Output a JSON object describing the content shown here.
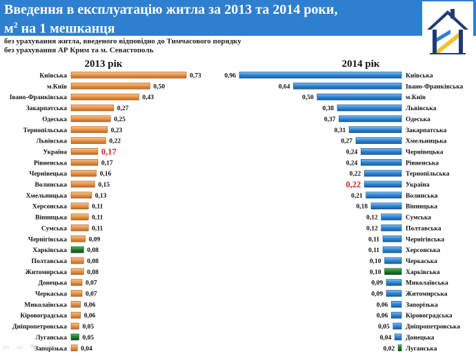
{
  "header": {
    "title_line1": "Введення в експлуатацію житла за 2013 та 2014 роки,",
    "title_line2_unit": "м",
    "title_line2_sup": "2",
    "title_line2_rest": " на 1 мешканця"
  },
  "notes": {
    "line1": "без урахування житла, введеного відповідно до Тимчасового порядку",
    "line2": "без урахування  АР Крим та м. Севастополь"
  },
  "nav": {
    "glyphs": "⇦ ⇨ ✎ ▭"
  },
  "colors": {
    "header_bg": "#2e7fcf",
    "bar_2013": "#e8944a",
    "bar_2014": "#2f86d6",
    "highlight_bar": "#1e7a2e",
    "ukraine_label": "#c0282d"
  },
  "chart_data": [
    {
      "type": "bar",
      "orientation": "horizontal",
      "title": "2013 рік",
      "categories": [
        "Київська",
        "м.Київ",
        "Івано-Франківська",
        "Закарпатська",
        "Одеська",
        "Тернопільська",
        "Львівська",
        "Україна",
        "Рівненська",
        "Чернівецька",
        "Волинська",
        "Хмельницька",
        "Херсонська",
        "Вінницька",
        "Сумська",
        "Чернігівська",
        "Харківська",
        "Полтавська",
        "Житомирська",
        "Донецька",
        "Черкаська",
        "Миколаївська",
        "Кіровоградська",
        "Дніпропетровська",
        "Луганська",
        "Запорізька"
      ],
      "values": [
        0.73,
        0.5,
        0.43,
        0.27,
        0.25,
        0.23,
        0.22,
        0.17,
        0.17,
        0.16,
        0.15,
        0.13,
        0.11,
        0.11,
        0.11,
        0.09,
        0.08,
        0.08,
        0.08,
        0.07,
        0.07,
        0.06,
        0.06,
        0.05,
        0.05,
        0.04
      ],
      "value_labels": [
        "0,73",
        "0,50",
        "0,43",
        "0,27",
        "0,25",
        "0,23",
        "0,22",
        "0,17",
        "0,17",
        "0,16",
        "0,15",
        "0,13",
        "0,11",
        "0,11",
        "0,11",
        "0,09",
        "0,08",
        "0,08",
        "0,08",
        "0,07",
        "0,07",
        "0,06",
        "0,06",
        "0,05",
        "0,05",
        "0,04"
      ],
      "highlight_total": "Україна",
      "highlight_green": [
        "Харківська",
        "Луганська"
      ],
      "xlim": [
        0,
        0.73
      ]
    },
    {
      "type": "bar",
      "orientation": "horizontal",
      "title": "2014 рік",
      "categories": [
        "Київська",
        "Івано-Франківська",
        "м.Київ",
        "Львівська",
        "Одеська",
        "Закарпатська",
        "Хмельницька",
        "Чернівецька",
        "Рівненська",
        "Тернопільська",
        "Україна",
        "Волинська",
        "Вінницька",
        "Сумська",
        "Полтавська",
        "Чернігівська",
        "Херсонська",
        "Черкаська",
        "Харківська",
        "Миколаївська",
        "Житомирська",
        "Запорізька",
        "Кіровоградська",
        "Дніпропетровська",
        "Донецька",
        "Луганська"
      ],
      "values": [
        0.96,
        0.64,
        0.5,
        0.38,
        0.37,
        0.31,
        0.27,
        0.24,
        0.24,
        0.22,
        0.22,
        0.21,
        0.18,
        0.12,
        0.12,
        0.11,
        0.11,
        0.1,
        0.1,
        0.09,
        0.09,
        0.06,
        0.06,
        0.05,
        0.04,
        0.02
      ],
      "value_labels": [
        "0,96",
        "0,64",
        "0,50",
        "0,38",
        "0,37",
        "0,31",
        "0,27",
        "0,24",
        "0,24",
        "0,22",
        "0,22",
        "0,21",
        "0,18",
        "0,12",
        "0,12",
        "0,11",
        "0,11",
        "0,10",
        "0,10",
        "0,09",
        "0,09",
        "0,06",
        "0,06",
        "0,05",
        "0,04",
        "0,02"
      ],
      "highlight_total": "Україна",
      "highlight_green": [
        "Харківська",
        "Луганська"
      ],
      "xlim": [
        0,
        0.96
      ]
    }
  ]
}
